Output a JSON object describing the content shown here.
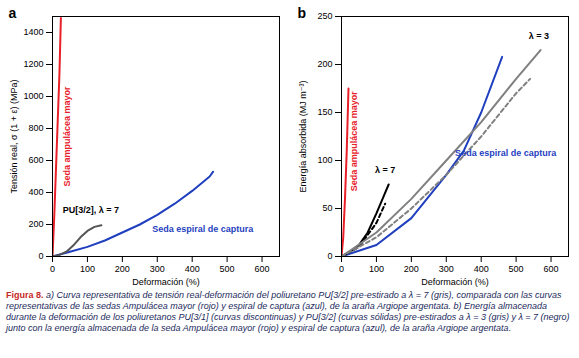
{
  "chart_data": [
    {
      "type": "line",
      "title": "a",
      "x_label": "Deformación (%)",
      "y_label": "Tensión real, σ (1 + ε) (MPa)",
      "xlim": [
        0,
        650
      ],
      "xticks": [
        0,
        100,
        200,
        300,
        400,
        500,
        600
      ],
      "ylim": [
        0,
        1500
      ],
      "yticks": [
        0,
        200,
        400,
        600,
        800,
        1000,
        1200,
        1400
      ],
      "series": [
        {
          "name": "Seda ampulácea mayor",
          "color": "#e8202a",
          "line_style": "solid",
          "x": [
            0,
            5,
            10,
            15,
            20,
            24
          ],
          "values": [
            0,
            250,
            550,
            850,
            1150,
            1490
          ]
        },
        {
          "name": "Seda espiral de captura",
          "color": "#1f3fbf",
          "line_style": "solid",
          "x": [
            0,
            50,
            100,
            150,
            200,
            250,
            300,
            350,
            400,
            450,
            460
          ],
          "values": [
            0,
            30,
            60,
            100,
            150,
            200,
            260,
            330,
            410,
            500,
            530
          ]
        },
        {
          "name": "PU[3/2], λ = 7",
          "color": "#555555",
          "line_style": "solid",
          "x": [
            0,
            20,
            40,
            60,
            80,
            100,
            120,
            140
          ],
          "values": [
            0,
            10,
            30,
            70,
            120,
            160,
            185,
            195
          ]
        }
      ],
      "annotations": [
        {
          "text": "Seda ampulácea mayor",
          "x": 42,
          "y": 750,
          "color": "#e8202a"
        },
        {
          "text": "Seda espiral de captura",
          "x": 430,
          "y": 170,
          "color": "#1f3fbf"
        },
        {
          "text": "PU[3/2], λ = 7",
          "x": 110,
          "y": 290,
          "color": "#000000"
        }
      ]
    },
    {
      "type": "line",
      "title": "b",
      "x_label": "Deformación (%)",
      "y_label": "Energía absorbida (MJ m⁻³)",
      "xlim": [
        0,
        650
      ],
      "xticks": [
        0,
        100,
        200,
        300,
        400,
        500,
        600
      ],
      "ylim": [
        0,
        250
      ],
      "yticks": [
        0,
        50,
        100,
        150,
        200,
        250
      ],
      "series": [
        {
          "name": "Seda ampulácea mayor",
          "color": "#e8202a",
          "line_style": "solid",
          "x": [
            0,
            5,
            10,
            15,
            20
          ],
          "values": [
            0,
            20,
            60,
            110,
            175
          ]
        },
        {
          "name": "Seda espiral de captura",
          "color": "#1f3fbf",
          "line_style": "solid",
          "x": [
            0,
            100,
            200,
            300,
            350,
            400,
            460
          ],
          "values": [
            0,
            12,
            40,
            85,
            110,
            150,
            208
          ]
        },
        {
          "name": "λ = 7",
          "color": "#000000",
          "line_style": "solid",
          "x": [
            0,
            25,
            50,
            75,
            100,
            120,
            135
          ],
          "values": [
            0,
            5,
            12,
            25,
            45,
            62,
            75
          ]
        },
        {
          "name": "λ = 7",
          "color": "#000000",
          "line_style": "dashed",
          "x": [
            0,
            50,
            100,
            125
          ],
          "values": [
            0,
            10,
            35,
            55
          ]
        },
        {
          "name": "λ = 3",
          "color": "#808080",
          "line_style": "solid",
          "x": [
            0,
            100,
            200,
            300,
            400,
            500,
            570
          ],
          "values": [
            0,
            25,
            60,
            100,
            140,
            185,
            215
          ]
        },
        {
          "name": "λ = 3",
          "color": "#808080",
          "line_style": "dashed",
          "x": [
            0,
            100,
            200,
            300,
            400,
            500,
            540
          ],
          "values": [
            0,
            20,
            50,
            85,
            125,
            170,
            185
          ]
        }
      ],
      "annotations": [
        {
          "text": "Seda ampulácea mayor",
          "x": 36,
          "y": 120,
          "color": "#e8202a"
        },
        {
          "text": "Seda espiral de captura",
          "x": 470,
          "y": 108,
          "color": "#1f3fbf"
        },
        {
          "text": "λ = 7",
          "x": 125,
          "y": 90,
          "color": "#000000"
        },
        {
          "text": "λ = 3",
          "x": 565,
          "y": 230,
          "color": "#000000"
        }
      ]
    }
  ],
  "caption": {
    "label": "Figura 8.",
    "text": "a) Curva representativa de tensión real-deformación del poliuretano PU[3/2] pre-estirado a λ = 7 (gris), comparada con las curvas representativas de las sedas Ampulácea mayor (rojo) y espiral de captura (azul), de la araña Argiope argentata. b) Energía almacenada durante la deformación de los poliuretanos PU[3/1] (curvas discontinuas) y PU[3/2] (curvas sólidas) pre-estirados a λ = 3 (gris) y λ = 7 (negro) junto con la energía almacenada de la seda Ampulácea mayor (rojo) y espiral de captura (azul), de la araña Argiope argentata."
  }
}
